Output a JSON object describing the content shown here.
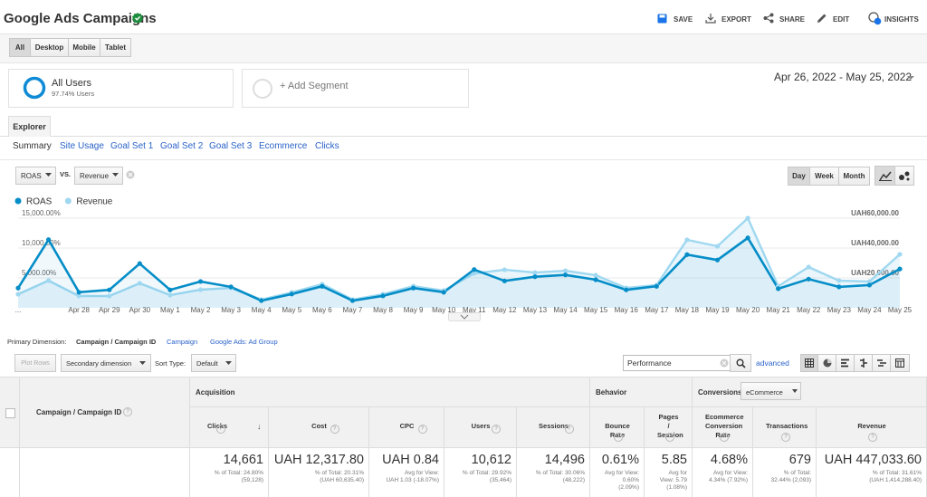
{
  "header": {
    "title": "Google Ads Campaigns",
    "actions": [
      "SAVE",
      "EXPORT",
      "SHARE",
      "EDIT",
      "INSIGHTS"
    ]
  },
  "device_tabs": [
    "All",
    "Desktop",
    "Mobile",
    "Tablet"
  ],
  "segments": {
    "active": {
      "name": "All Users",
      "detail": "97.74% Users"
    },
    "add": "+ Add Segment"
  },
  "date_range": "Apr 26, 2022 - May 25, 2022",
  "report_tab": "Explorer",
  "sub_tabs": [
    "Summary",
    "Site Usage",
    "Goal Set 1",
    "Goal Set 2",
    "Goal Set 3",
    "Ecommerce",
    "Clicks"
  ],
  "chart_controls": {
    "metric_1": "ROAS",
    "vs": "VS.",
    "metric_2": "Revenue",
    "granularity": [
      "Day",
      "Week",
      "Month"
    ]
  },
  "chart_data": {
    "type": "line",
    "categories": [
      "...",
      null,
      "Apr 28",
      "Apr 29",
      "Apr 30",
      "May 1",
      "May 2",
      "May 3",
      "May 4",
      "May 5",
      "May 6",
      "May 7",
      "May 8",
      "May 9",
      "May 10",
      "May 11",
      "May 12",
      "May 13",
      "May 14",
      "May 15",
      "May 16",
      "May 17",
      "May 18",
      "May 19",
      "May 20",
      "May 21",
      "May 22",
      "May 23",
      "May 24",
      "May 25"
    ],
    "series": [
      {
        "name": "ROAS",
        "color": "#058dc7",
        "axis": "y",
        "values": [
          3300,
          11400,
          2600,
          3000,
          7400,
          3000,
          4400,
          3500,
          1200,
          2300,
          3600,
          1200,
          2000,
          3300,
          2600,
          6400,
          4500,
          5200,
          5500,
          4700,
          3000,
          3600,
          8900,
          8000,
          11700,
          3200,
          4800,
          3500,
          3800,
          6500
        ]
      },
      {
        "name": "Revenue",
        "color": "#9fd8f0",
        "axis": "y2",
        "values": [
          9100,
          18200,
          7900,
          7900,
          16400,
          8500,
          12100,
          13300,
          5500,
          10300,
          15800,
          5500,
          9100,
          14500,
          11500,
          23000,
          25500,
          23600,
          24800,
          21800,
          13300,
          15200,
          45500,
          41200,
          60000,
          14500,
          27300,
          18200,
          17600,
          35800
        ]
      }
    ],
    "ylim": [
      0,
      15000
    ],
    "yticks": [
      {
        "value": 5000,
        "label": "5,000.00%"
      },
      {
        "value": 10000,
        "label": "10,000.00%"
      },
      {
        "value": 15000,
        "label": "15,000.00%"
      }
    ],
    "y2lim": [
      0,
      60000
    ],
    "y2ticks": [
      {
        "value": 20000,
        "label": "UAH20,000.00"
      },
      {
        "value": 40000,
        "label": "UAH40,000.00"
      },
      {
        "value": 60000,
        "label": "UAH60,000.00"
      }
    ],
    "grid": true,
    "legend": "top-left"
  },
  "dimension_bar": {
    "label": "Primary Dimension:",
    "selected": "Campaign / Campaign ID",
    "options": [
      "Campaign",
      "Google Ads: Ad Group"
    ]
  },
  "table_controls": {
    "plot_rows": "Plot Rows",
    "secondary_dimension": "Secondary dimension",
    "sort_label": "Sort Type:",
    "sort_value": "Default",
    "search": "Performance",
    "advanced": "advanced"
  },
  "table": {
    "dimension_header": "Campaign / Campaign ID",
    "groups": [
      {
        "label": "Acquisition"
      },
      {
        "label": "Behavior"
      },
      {
        "label": "Conversions",
        "select": "eCommerce"
      }
    ],
    "columns": [
      {
        "header": "Clicks",
        "total": "14,661",
        "sub": [
          "% of Total: 24.80%",
          "(59,128)"
        ]
      },
      {
        "header": "Cost",
        "total": "UAH 12,317.80",
        "sub": [
          "% of Total: 20.31%",
          "(UAH 60,635.40)"
        ]
      },
      {
        "header": "CPC",
        "total": "UAH 0.84",
        "sub": [
          "Avg for View:",
          "UAH 1.03 (-18.07%)"
        ]
      },
      {
        "header": "Users",
        "total": "10,612",
        "sub": [
          "% of Total: 29.92%",
          "(35,464)"
        ]
      },
      {
        "header": "Sessions",
        "total": "14,496",
        "sub": [
          "% of Total: 30.06%",
          "(48,222)"
        ]
      },
      {
        "header": "Bounce Rate",
        "total": "0.61%",
        "sub": [
          "Avg for View:",
          "0.60%",
          "(2.09%)"
        ]
      },
      {
        "header": "Pages / Session",
        "total": "5.85",
        "sub": [
          "Avg for",
          "View: 5.79",
          "(1.08%)"
        ]
      },
      {
        "header": "Ecommerce Conversion Rate",
        "total": "4.68%",
        "sub": [
          "Avg for View:",
          "4.34% (7.92%)"
        ]
      },
      {
        "header": "Transactions",
        "total": "679",
        "sub": [
          "% of Total:",
          "32.44% (2,093)"
        ]
      },
      {
        "header": "Revenue",
        "total": "UAH 447,033.60",
        "sub": [
          "% of Total: 31.61%",
          "(UAH 1,414,288.40)"
        ]
      }
    ]
  }
}
